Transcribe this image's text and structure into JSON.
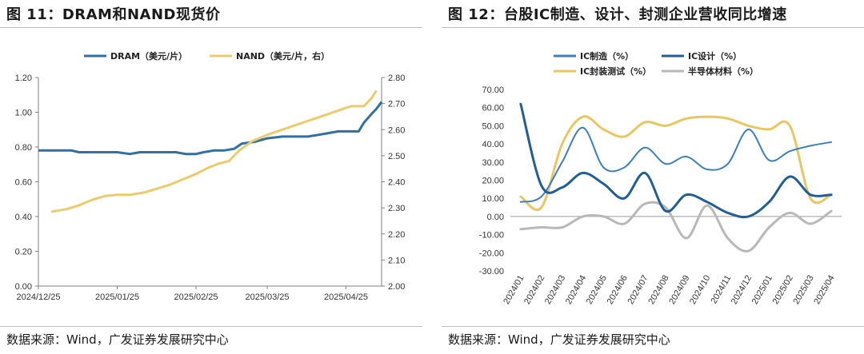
{
  "figures": [
    {
      "title": "图 11：DRAM和NAND现货价",
      "source": "数据来源：Wind，广发证券发展研究中心"
    },
    {
      "title": "图 12：台股IC制造、设计、封测企业营收同比增速",
      "source": "数据来源：Wind，广发证券发展研究中心"
    }
  ],
  "chart_data": [
    {
      "type": "line",
      "title": "DRAM和NAND现货价",
      "legend_position": "top",
      "grid": false,
      "x_ticks": [
        "2024/12/25",
        "2025/01/25",
        "2025/02/25",
        "2025/03/25",
        "2025/04/25"
      ],
      "x_range": [
        "2024-12-25",
        "2025-05-09"
      ],
      "y_left": {
        "range": [
          0,
          1.2
        ],
        "ticks": [
          "0.00",
          "0.20",
          "0.40",
          "0.60",
          "0.80",
          "1.00",
          "1.20"
        ]
      },
      "y_right": {
        "range": [
          2.0,
          2.8
        ],
        "ticks": [
          "2.00",
          "2.10",
          "2.20",
          "2.30",
          "2.40",
          "2.50",
          "2.60",
          "2.70",
          "2.80"
        ]
      },
      "series": [
        {
          "name": "DRAM（美元/片）",
          "axis": "left",
          "color": "#2e6fa7",
          "points": [
            [
              "2024-12-25",
              0.78
            ],
            [
              "2024-12-30",
              0.78
            ],
            [
              "2025-01-03",
              0.78
            ],
            [
              "2025-01-07",
              0.78
            ],
            [
              "2025-01-10",
              0.77
            ],
            [
              "2025-01-15",
              0.77
            ],
            [
              "2025-01-20",
              0.77
            ],
            [
              "2025-01-25",
              0.77
            ],
            [
              "2025-01-30",
              0.76
            ],
            [
              "2025-02-03",
              0.77
            ],
            [
              "2025-02-07",
              0.77
            ],
            [
              "2025-02-12",
              0.77
            ],
            [
              "2025-02-17",
              0.77
            ],
            [
              "2025-02-21",
              0.76
            ],
            [
              "2025-02-25",
              0.76
            ],
            [
              "2025-02-28",
              0.77
            ],
            [
              "2025-03-04",
              0.78
            ],
            [
              "2025-03-08",
              0.78
            ],
            [
              "2025-03-12",
              0.79
            ],
            [
              "2025-03-15",
              0.82
            ],
            [
              "2025-03-20",
              0.83
            ],
            [
              "2025-03-25",
              0.85
            ],
            [
              "2025-03-31",
              0.86
            ],
            [
              "2025-04-05",
              0.86
            ],
            [
              "2025-04-10",
              0.86
            ],
            [
              "2025-04-14",
              0.87
            ],
            [
              "2025-04-18",
              0.88
            ],
            [
              "2025-04-22",
              0.89
            ],
            [
              "2025-04-26",
              0.89
            ],
            [
              "2025-04-30",
              0.89
            ],
            [
              "2025-05-02",
              0.94
            ],
            [
              "2025-05-05",
              0.99
            ],
            [
              "2025-05-07",
              1.02
            ],
            [
              "2025-05-08",
              1.04
            ],
            [
              "2025-05-09",
              1.06
            ]
          ]
        },
        {
          "name": "NAND（美元/片，右）",
          "axis": "right",
          "color": "#ebcb6b",
          "points": [
            [
              "2024-12-30",
              2.285
            ],
            [
              "2025-01-05",
              2.295
            ],
            [
              "2025-01-10",
              2.31
            ],
            [
              "2025-01-15",
              2.33
            ],
            [
              "2025-01-20",
              2.345
            ],
            [
              "2025-01-25",
              2.35
            ],
            [
              "2025-01-30",
              2.35
            ],
            [
              "2025-02-05",
              2.36
            ],
            [
              "2025-02-10",
              2.375
            ],
            [
              "2025-02-15",
              2.39
            ],
            [
              "2025-02-20",
              2.41
            ],
            [
              "2025-02-25",
              2.43
            ],
            [
              "2025-03-02",
              2.455
            ],
            [
              "2025-03-06",
              2.47
            ],
            [
              "2025-03-10",
              2.48
            ],
            [
              "2025-03-14",
              2.52
            ],
            [
              "2025-03-19",
              2.555
            ],
            [
              "2025-03-25",
              2.58
            ],
            [
              "2025-03-31",
              2.6
            ],
            [
              "2025-04-06",
              2.62
            ],
            [
              "2025-04-12",
              2.64
            ],
            [
              "2025-04-18",
              2.66
            ],
            [
              "2025-04-24",
              2.68
            ],
            [
              "2025-04-27",
              2.69
            ],
            [
              "2025-04-30",
              2.69
            ],
            [
              "2025-05-02",
              2.69
            ],
            [
              "2025-05-05",
              2.72
            ],
            [
              "2025-05-07",
              2.75
            ]
          ]
        }
      ]
    },
    {
      "type": "line",
      "title": "台股IC制造、设计、封测企业营收同比增速",
      "legend_position": "top",
      "grid": false,
      "categories": [
        "2024/01",
        "2024/02",
        "2024/03",
        "2024/04",
        "2024/05",
        "2024/06",
        "2024/07",
        "2024/08",
        "2024/09",
        "2024/10",
        "2024/11",
        "2024/12",
        "2025/01",
        "2025/02",
        "2025/03",
        "2025/04"
      ],
      "y_range": [
        -30,
        70
      ],
      "y_ticks": [
        "70.00",
        "60.00",
        "50.00",
        "40.00",
        "30.00",
        "20.00",
        "10.00",
        "0.00",
        "-10.00",
        "-20.00",
        "-30.00"
      ],
      "series": [
        {
          "name": "IC制造（%）",
          "color": "#3b7fc1",
          "width": 2,
          "values": [
            8,
            11,
            30,
            49,
            27,
            27,
            38,
            29,
            33,
            26,
            29,
            48,
            31,
            36,
            39,
            41
          ]
        },
        {
          "name": "IC设计（%）",
          "color": "#1f5e9a",
          "width": 3,
          "values": [
            62,
            17,
            16,
            24,
            18,
            10,
            24,
            3,
            12,
            8,
            2,
            0,
            8,
            22,
            12,
            12
          ]
        },
        {
          "name": "IC封装测试（%）",
          "color": "#e8c75f",
          "width": 3,
          "values": [
            11,
            5,
            40,
            55,
            48,
            44,
            52,
            50,
            54,
            55,
            54,
            50,
            48,
            50,
            10,
            12
          ]
        },
        {
          "name": "半导体材料（%）",
          "color": "#b8b8b8",
          "width": 3,
          "values": [
            -7,
            -6,
            -6,
            0,
            0,
            -4,
            7,
            5,
            -12,
            6,
            -12,
            -19,
            -6,
            2,
            -4,
            3
          ]
        }
      ]
    }
  ]
}
